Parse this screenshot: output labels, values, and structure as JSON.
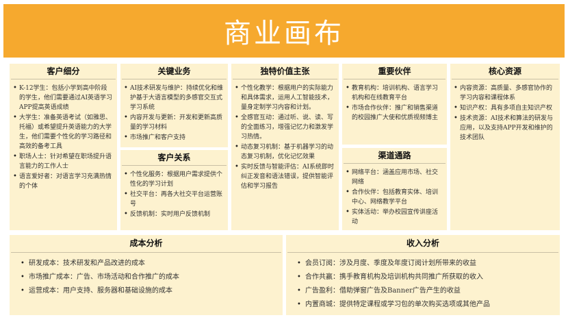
{
  "title": "商业画布",
  "customer_segments": {
    "heading": "客户细分",
    "items": [
      "K-12学生：包括小学到高中阶段的学生，他们需要通过AI英语学习APP提高英语成绩",
      "大学生：准备英语考试（如雅思、托福）或希望提升英语能力的大学生，他们需要个性化的学习路径和高效的备考工具",
      "职场人士：针对希望在职场提升语言能力的工作人士",
      "语言爱好者：对语言学习充满热情的个体"
    ]
  },
  "key_activities": {
    "heading": "关键业务",
    "items": [
      "AI技术研发与维护：持续优化和维护基于大语言模型的多感官交互式学习系统",
      "内容开发与更新：开发和更新高质量的学习材料",
      "市场推广和客户支持"
    ]
  },
  "customer_relationships": {
    "heading": "客户关系",
    "items": [
      "个性化服务：根据用户需求提供个性化的学习计划",
      "社交平台：再各大社交平台运营账号",
      "反馈机制：实时用户反馈机制"
    ]
  },
  "value_propositions": {
    "heading": "独特价值主张",
    "items": [
      "个性化教学：根据用户的实际能力和具体需求，运用人工智能技术，量身定制学习内容和计划。",
      "全感官互动：通过听、说、读、写的全面练习，增强记忆力和激发学习热情。",
      "动态复习机制：基于机器学习的动态复习机制，优化记忆效果",
      "实时反馈与智能评估：AI系统即时纠正发音和语法错误，提供智能评估和学习报告"
    ]
  },
  "key_partners": {
    "heading": "重要伙伴",
    "items": [
      "教育机构：培训机构、语言学习机构和在线教育平台",
      "市场合作伙伴：推广和销售渠道的校园推广大使和优质视频博主"
    ]
  },
  "channels": {
    "heading": "渠道通路",
    "items": [
      "网络平台：涵盖应用市场、社交网络",
      "合作伙伴：包括教育实体、培训中心、网络教学平台",
      "实体活动：举办校园宣传讲座活动"
    ]
  },
  "key_resources": {
    "heading": "核心资源",
    "items": [
      "内容资源：高质量、多感官协作的学习内容和课程体系",
      "知识产权：具有多项自主知识产权",
      "技术资源：AI技术和算法的研发与应用，以及支持APP开发和维护的技术团队"
    ]
  },
  "cost_structure": {
    "heading": "成本分析",
    "items": [
      "研发成本：技术研发和产品改进的成本",
      "市场推广成本：广告、市场活动和合作推广的成本",
      "运营成本：用户支持、服务器和基础设施的成本"
    ]
  },
  "revenue_streams": {
    "heading": "收入分析",
    "items": [
      "会员订阅：涉及月度、季度及年度订阅计划所带来的收益",
      "合作共赢：携手教育机构及培训机构共同推广所获取的收入",
      "广告盈利：借助弹窗广告及Banner广告产生的收益",
      "内置商城：提供特定课程或学习包的单次购买选项或其他产品"
    ]
  },
  "colors": {
    "banner": "#f6a92e",
    "card": "#fdf2cf"
  }
}
